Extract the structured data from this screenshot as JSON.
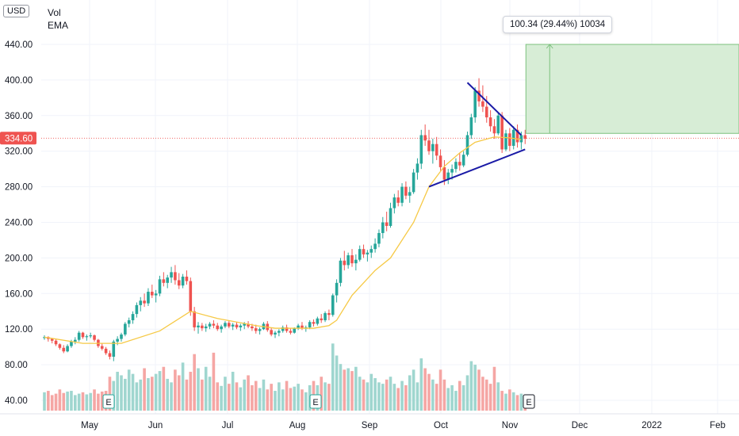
{
  "toolbar": {
    "currency": "USD"
  },
  "legend": {
    "items": [
      "Vol",
      "EMA"
    ]
  },
  "measure": {
    "label": "100.34 (29.44%) 10034"
  },
  "colors": {
    "up": "#26a69a",
    "down": "#ef5350",
    "ema": "#f6c945",
    "trend": "#1a1aa6",
    "range_fill": "#d7edd6",
    "range_border": "#7cc17e",
    "vol_up": "#9fd6cf",
    "vol_down": "#f5a6a4",
    "grid": "#f0f3fa",
    "price_badge": "#ef5350"
  },
  "chart_data": {
    "type": "candlestick",
    "y_ticks": [
      "440.00",
      "400.00",
      "360.00",
      "320.00",
      "280.00",
      "240.00",
      "200.00",
      "160.00",
      "120.00",
      "80.00",
      "40.00"
    ],
    "ylim": [
      32,
      470
    ],
    "x_ticks": [
      "May",
      "Jun",
      "Jul",
      "Aug",
      "Sep",
      "Oct",
      "Nov",
      "Dec",
      "2022",
      "Feb"
    ],
    "current_price": "334.60",
    "earnings_markers": [
      "E",
      "E",
      "E"
    ],
    "ohlc": [
      [
        110,
        113,
        108,
        111
      ],
      [
        111,
        112,
        106,
        109
      ],
      [
        109,
        110,
        104,
        107
      ],
      [
        107,
        109,
        101,
        103
      ],
      [
        103,
        104,
        97,
        99
      ],
      [
        99,
        102,
        93,
        95
      ],
      [
        95,
        103,
        94,
        101
      ],
      [
        101,
        108,
        99,
        106
      ],
      [
        106,
        111,
        103,
        108
      ],
      [
        108,
        118,
        106,
        116
      ],
      [
        116,
        117,
        109,
        111
      ],
      [
        111,
        114,
        107,
        112
      ],
      [
        112,
        116,
        110,
        113
      ],
      [
        113,
        114,
        106,
        108
      ],
      [
        108,
        109,
        99,
        101
      ],
      [
        101,
        104,
        96,
        98
      ],
      [
        98,
        100,
        91,
        93
      ],
      [
        93,
        96,
        86,
        89
      ],
      [
        89,
        108,
        84,
        106
      ],
      [
        106,
        112,
        102,
        109
      ],
      [
        109,
        116,
        106,
        114
      ],
      [
        114,
        128,
        112,
        126
      ],
      [
        126,
        133,
        122,
        130
      ],
      [
        130,
        140,
        126,
        137
      ],
      [
        137,
        150,
        133,
        147
      ],
      [
        147,
        156,
        140,
        152
      ],
      [
        152,
        160,
        145,
        149
      ],
      [
        149,
        166,
        146,
        162
      ],
      [
        162,
        170,
        155,
        158
      ],
      [
        158,
        164,
        150,
        160
      ],
      [
        160,
        180,
        157,
        176
      ],
      [
        176,
        184,
        168,
        172
      ],
      [
        172,
        181,
        166,
        178
      ],
      [
        178,
        190,
        172,
        184
      ],
      [
        184,
        192,
        170,
        175
      ],
      [
        175,
        183,
        165,
        169
      ],
      [
        169,
        182,
        166,
        179
      ],
      [
        179,
        186,
        170,
        174
      ],
      [
        174,
        178,
        135,
        140
      ],
      [
        140,
        145,
        118,
        122
      ],
      [
        122,
        128,
        115,
        124
      ],
      [
        124,
        127,
        118,
        121
      ],
      [
        121,
        126,
        117,
        123
      ],
      [
        123,
        128,
        120,
        126
      ],
      [
        126,
        130,
        121,
        124
      ],
      [
        124,
        127,
        118,
        120
      ],
      [
        120,
        125,
        116,
        123
      ],
      [
        123,
        129,
        121,
        127
      ],
      [
        127,
        130,
        121,
        123
      ],
      [
        123,
        127,
        119,
        125
      ],
      [
        125,
        128,
        120,
        122
      ],
      [
        122,
        126,
        118,
        124
      ],
      [
        124,
        128,
        120,
        126
      ],
      [
        126,
        129,
        121,
        123
      ],
      [
        123,
        126,
        118,
        121
      ],
      [
        121,
        125,
        115,
        118
      ],
      [
        118,
        122,
        114,
        120
      ],
      [
        120,
        128,
        119,
        126
      ],
      [
        126,
        129,
        117,
        119
      ],
      [
        119,
        122,
        112,
        114
      ],
      [
        114,
        118,
        110,
        116
      ],
      [
        116,
        120,
        112,
        118
      ],
      [
        118,
        124,
        116,
        122
      ],
      [
        122,
        125,
        116,
        118
      ],
      [
        118,
        121,
        114,
        116
      ],
      [
        116,
        122,
        115,
        121
      ],
      [
        121,
        126,
        119,
        124
      ],
      [
        124,
        128,
        119,
        121
      ],
      [
        121,
        124,
        117,
        122
      ],
      [
        122,
        130,
        120,
        128
      ],
      [
        128,
        131,
        123,
        126
      ],
      [
        126,
        134,
        124,
        132
      ],
      [
        132,
        137,
        127,
        130
      ],
      [
        130,
        140,
        128,
        138
      ],
      [
        138,
        142,
        130,
        136
      ],
      [
        136,
        160,
        134,
        158
      ],
      [
        158,
        176,
        150,
        172
      ],
      [
        172,
        200,
        168,
        197
      ],
      [
        197,
        208,
        186,
        192
      ],
      [
        192,
        206,
        188,
        203
      ],
      [
        203,
        210,
        190,
        194
      ],
      [
        194,
        204,
        186,
        198
      ],
      [
        198,
        214,
        196,
        210
      ],
      [
        210,
        215,
        200,
        204
      ],
      [
        204,
        209,
        196,
        206
      ],
      [
        206,
        214,
        200,
        210
      ],
      [
        210,
        222,
        206,
        216
      ],
      [
        216,
        232,
        212,
        228
      ],
      [
        228,
        246,
        222,
        240
      ],
      [
        240,
        252,
        230,
        236
      ],
      [
        236,
        262,
        234,
        256
      ],
      [
        256,
        272,
        250,
        268
      ],
      [
        268,
        276,
        258,
        262
      ],
      [
        262,
        284,
        258,
        280
      ],
      [
        280,
        286,
        266,
        270
      ],
      [
        270,
        280,
        262,
        274
      ],
      [
        274,
        300,
        272,
        296
      ],
      [
        296,
        312,
        288,
        306
      ],
      [
        306,
        344,
        300,
        338
      ],
      [
        338,
        350,
        326,
        332
      ],
      [
        332,
        344,
        316,
        320
      ],
      [
        320,
        334,
        306,
        328
      ],
      [
        328,
        336,
        310,
        315
      ],
      [
        315,
        322,
        298,
        302
      ],
      [
        302,
        310,
        282,
        288
      ],
      [
        288,
        300,
        283,
        296
      ],
      [
        296,
        305,
        288,
        300
      ],
      [
        300,
        312,
        296,
        308
      ],
      [
        308,
        318,
        298,
        304
      ],
      [
        304,
        320,
        302,
        316
      ],
      [
        316,
        342,
        314,
        338
      ],
      [
        338,
        362,
        334,
        358
      ],
      [
        358,
        392,
        352,
        388
      ],
      [
        388,
        402,
        370,
        376
      ],
      [
        376,
        394,
        364,
        370
      ],
      [
        370,
        382,
        352,
        358
      ],
      [
        358,
        366,
        342,
        348
      ],
      [
        348,
        356,
        334,
        340
      ],
      [
        340,
        364,
        338,
        360
      ],
      [
        360,
        364,
        318,
        322
      ],
      [
        322,
        344,
        320,
        340
      ],
      [
        340,
        346,
        320,
        326
      ],
      [
        326,
        348,
        322,
        344
      ],
      [
        344,
        350,
        324,
        330
      ],
      [
        330,
        342,
        322,
        338
      ],
      [
        338,
        344,
        328,
        334
      ]
    ],
    "volume": [
      26,
      28,
      22,
      24,
      30,
      25,
      27,
      28,
      22,
      24,
      26,
      23,
      25,
      30,
      24,
      27,
      28,
      48,
      42,
      55,
      50,
      45,
      58,
      52,
      40,
      44,
      60,
      46,
      48,
      52,
      56,
      62,
      45,
      40,
      58,
      50,
      68,
      44,
      55,
      80,
      60,
      44,
      62,
      48,
      82,
      40,
      35,
      48,
      38,
      55,
      40,
      33,
      44,
      50,
      36,
      42,
      32,
      44,
      30,
      38,
      28,
      40,
      30,
      42,
      32,
      34,
      38,
      30,
      26,
      36,
      42,
      36,
      48,
      40,
      38,
      95,
      78,
      66,
      58,
      60,
      56,
      62,
      48,
      44,
      40,
      52,
      46,
      40,
      38,
      44,
      48,
      38,
      32,
      42,
      36,
      50,
      58,
      40,
      74,
      60,
      52,
      44,
      38,
      58,
      44,
      32,
      36,
      28,
      42,
      36,
      50,
      70,
      65,
      58,
      48,
      44,
      38,
      62,
      40,
      28,
      24,
      30,
      26,
      22,
      24,
      20
    ],
    "vol_ylim": [
      0,
      230
    ],
    "ema": [
      [
        0,
        111
      ],
      [
        10,
        104
      ],
      [
        20,
        104
      ],
      [
        30,
        118
      ],
      [
        38,
        140
      ],
      [
        45,
        132
      ],
      [
        55,
        124
      ],
      [
        60,
        121
      ],
      [
        70,
        121
      ],
      [
        74,
        124
      ],
      [
        76,
        130
      ],
      [
        80,
        158
      ],
      [
        86,
        186
      ],
      [
        90,
        200
      ],
      [
        96,
        240
      ],
      [
        100,
        280
      ],
      [
        104,
        303
      ],
      [
        108,
        318
      ],
      [
        112,
        330
      ],
      [
        117,
        336
      ],
      [
        121,
        335
      ],
      [
        124,
        333
      ]
    ],
    "trendlines": [
      {
        "from": [
          110,
          397
        ],
        "to": [
          124,
          338
        ],
        "color": "trend"
      },
      {
        "from": [
          100,
          280
        ],
        "to": [
          125,
          322
        ],
        "color": "trend"
      }
    ],
    "measure_range": {
      "x_from": 125,
      "x_to": 180,
      "y_from": 340,
      "y_to": 440
    }
  }
}
